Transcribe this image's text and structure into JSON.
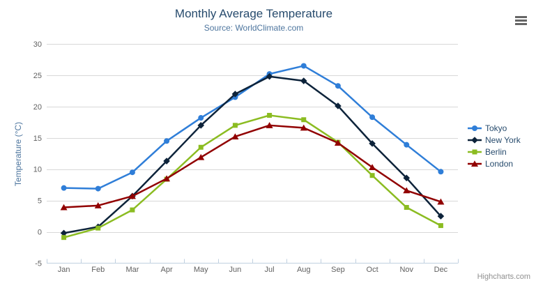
{
  "header": {
    "title": "Monthly Average Temperature",
    "subtitle": "Source: WorldClimate.com"
  },
  "context_menu": {
    "icon": "hamburger-icon"
  },
  "credit": "Highcharts.com",
  "chart_data": {
    "type": "line",
    "title": "Monthly Average Temperature",
    "subtitle": "Source: WorldClimate.com",
    "xlabel": "",
    "ylabel": "Temperature (°C)",
    "categories": [
      "Jan",
      "Feb",
      "Mar",
      "Apr",
      "May",
      "Jun",
      "Jul",
      "Aug",
      "Sep",
      "Oct",
      "Nov",
      "Dec"
    ],
    "ylim": [
      -5,
      30
    ],
    "ytick_step": 5,
    "yticks": [
      -5,
      0,
      5,
      10,
      15,
      20,
      25,
      30
    ],
    "grid": true,
    "legend_position": "right",
    "axis_colors": {
      "grid": "#d8d8d8",
      "axis_line": "#c0d0e0",
      "labels": "#606060"
    },
    "series": [
      {
        "name": "Tokyo",
        "color": "#2f7ed8",
        "marker": "circle",
        "values": [
          7.0,
          6.9,
          9.5,
          14.5,
          18.2,
          21.5,
          25.2,
          26.5,
          23.3,
          18.3,
          13.9,
          9.6
        ]
      },
      {
        "name": "New York",
        "color": "#0d233a",
        "marker": "diamond",
        "values": [
          -0.2,
          0.8,
          5.7,
          11.3,
          17.0,
          22.0,
          24.8,
          24.1,
          20.1,
          14.1,
          8.6,
          2.5
        ]
      },
      {
        "name": "Berlin",
        "color": "#8bbc21",
        "marker": "square",
        "values": [
          -0.9,
          0.6,
          3.5,
          8.4,
          13.5,
          17.0,
          18.6,
          17.9,
          14.3,
          9.0,
          3.9,
          1.0
        ]
      },
      {
        "name": "London",
        "color": "#910000",
        "marker": "triangle",
        "values": [
          3.9,
          4.2,
          5.7,
          8.5,
          11.9,
          15.2,
          17.0,
          16.6,
          14.2,
          10.3,
          6.6,
          4.8
        ]
      }
    ]
  }
}
